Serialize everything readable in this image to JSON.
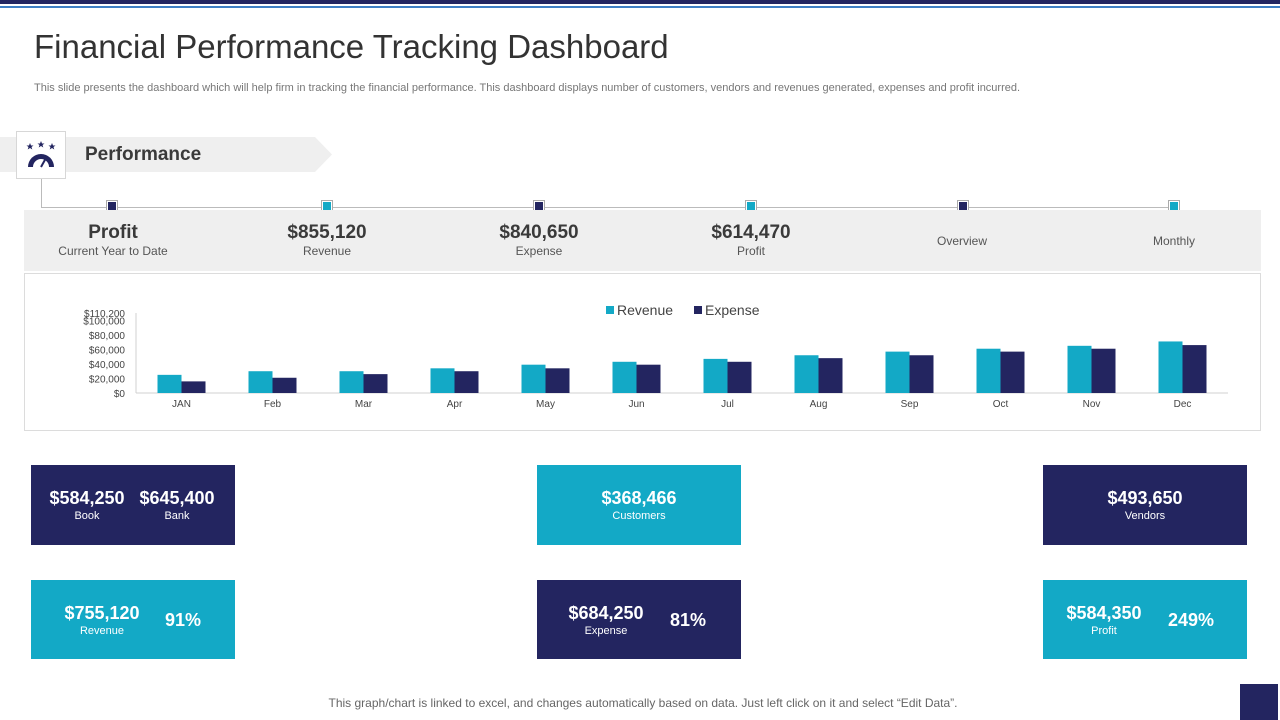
{
  "page": {
    "title": "Financial Performance Tracking Dashboard",
    "subtitle": "This slide presents the dashboard which will help firm in tracking the financial performance. This dashboard displays number of customers, vendors and revenues generated, expenses and profit incurred.",
    "footer": "This graph/chart is linked to excel,  and changes automatically based on data. Just left click on it and select “Edit Data”."
  },
  "section": {
    "label": "Performance",
    "icon": "speedometer-stars-icon"
  },
  "colors": {
    "dark": "#232560",
    "teal": "#13a9c6",
    "band": "#efefef"
  },
  "kpis": [
    {
      "value": "Profit",
      "label": "Current Year to Date",
      "marker": "dark"
    },
    {
      "value": "$855,120",
      "label": "Revenue",
      "marker": "teal"
    },
    {
      "value": "$840,650",
      "label": "Expense",
      "marker": "dark"
    },
    {
      "value": "$614,470",
      "label": "Profit",
      "marker": "teal"
    },
    {
      "value": "",
      "label": "Overview",
      "marker": "dark"
    },
    {
      "value": "",
      "label": "Monthly",
      "marker": "teal"
    }
  ],
  "chart_data": {
    "type": "bar",
    "categories": [
      "JAN",
      "Feb",
      "Mar",
      "Apr",
      "May",
      "Jun",
      "Jul",
      "Aug",
      "Sep",
      "Oct",
      "Nov",
      "Dec"
    ],
    "series": [
      {
        "name": "Revenue",
        "color": "#13a9c6",
        "values": [
          25000,
          30000,
          30000,
          34000,
          39000,
          43000,
          47000,
          52000,
          57000,
          61000,
          65000,
          71000
        ]
      },
      {
        "name": "Expense",
        "color": "#232560",
        "values": [
          16000,
          21000,
          26000,
          30000,
          34000,
          39000,
          43000,
          48000,
          52000,
          57000,
          61000,
          66000
        ]
      }
    ],
    "y_ticks": [
      "$0",
      "$20,000",
      "$40,000",
      "$60,000",
      "$80,000",
      "$100,000",
      "$110,200"
    ],
    "ylim": [
      0,
      110200
    ],
    "legend": "top-center",
    "grid": false
  },
  "cards": {
    "book": {
      "value": "$584,250",
      "label": "Book"
    },
    "bank": {
      "value": "$645,400",
      "label": "Bank"
    },
    "customers": {
      "value": "$368,466",
      "label": "Customers"
    },
    "vendors": {
      "value": "$493,650",
      "label": "Vendors"
    },
    "revenue": {
      "value": "$755,120",
      "label": "Revenue",
      "percent": "91%"
    },
    "expense": {
      "value": "$684,250",
      "label": "Expense",
      "percent": "81%"
    },
    "profit": {
      "value": "$584,350",
      "label": "Profit",
      "percent": "249%"
    }
  }
}
